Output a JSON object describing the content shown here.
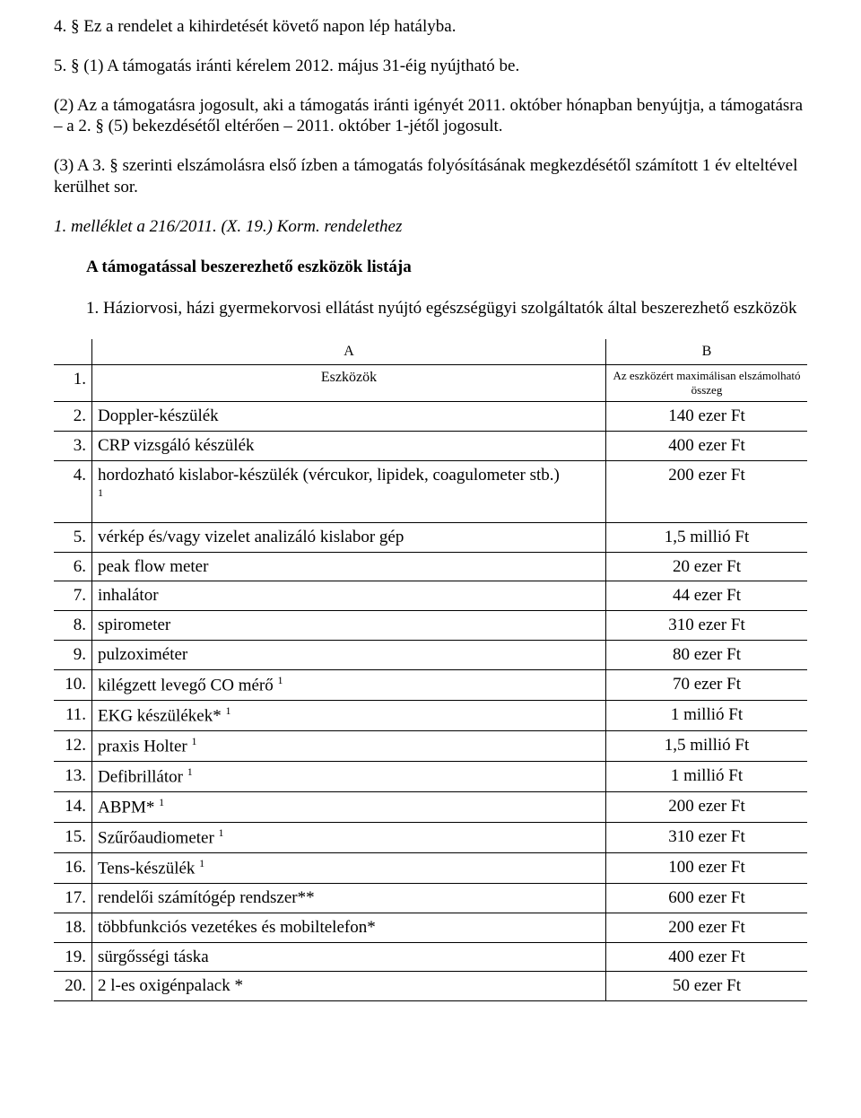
{
  "paragraphs": {
    "p1": "4. § Ez a rendelet a kihirdetését követő napon lép hatályba.",
    "p2": "5. § (1) A támogatás iránti kérelem 2012. május 31-éig nyújtható be.",
    "p3": "(2) Az a támogatásra jogosult, aki a támogatás iránti igényét 2011. október hónapban benyújtja, a támogatásra – a 2. § (5) bekezdésétől eltérően – 2011. október 1-jétől jogosult.",
    "p4": "(3) A 3. § szerinti elszámolásra első ízben a támogatás folyósításának megkezdésétől számított 1 év elteltével kerülhet sor."
  },
  "attachment_heading": "1. melléklet a 216/2011. (X. 19.) Korm. rendelethez",
  "subtitle": "A támogatással beszerezhető eszközök listája",
  "list_item_1": "1.   Háziorvosi, házi gyermekorvosi ellátást nyújtó egészségügyi szolgáltatók által beszerezhető eszközök",
  "table": {
    "colA_header": "A",
    "colB_header": "B",
    "row1_A": "Eszközök",
    "row1_B": "Az eszközért maximálisan elszámolható összeg",
    "rows": [
      {
        "n": "2.",
        "a": "Doppler-készülék",
        "b": "140 ezer Ft"
      },
      {
        "n": "3.",
        "a": "CRP vizsgáló készülék",
        "b": "400 ezer Ft"
      },
      {
        "n": "4.",
        "a": "hordozható kislabor-készülék (vércukor, lipidek, coagulometer stb.) ",
        "sup": "1",
        "b": "200 ezer Ft",
        "tall": true
      },
      {
        "n": "5.",
        "a": "vérkép és/vagy vizelet analizáló kislabor gép",
        "b": "1,5 millió Ft"
      },
      {
        "n": "6.",
        "a": "peak flow meter",
        "b": "20 ezer Ft"
      },
      {
        "n": "7.",
        "a": "inhalátor",
        "b": "44 ezer Ft"
      },
      {
        "n": "8.",
        "a": "spirometer",
        "b": "310 ezer Ft"
      },
      {
        "n": "9.",
        "a": "pulzoximéter",
        "b": "80 ezer Ft"
      },
      {
        "n": "10.",
        "a": "kilégzett levegő CO mérő ",
        "sup": "1",
        "b": "70 ezer Ft"
      },
      {
        "n": "11.",
        "a": "EKG készülékek* ",
        "sup": "1",
        "b": "1 millió Ft"
      },
      {
        "n": "12.",
        "a": "praxis Holter ",
        "sup": "1",
        "b": "1,5 millió Ft"
      },
      {
        "n": "13.",
        "a": "Defibrillátor ",
        "sup": "1",
        "b": "1 millió Ft"
      },
      {
        "n": "14.",
        "a": "ABPM* ",
        "sup": "1",
        "b": "200 ezer Ft"
      },
      {
        "n": "15.",
        "a": "Szűrőaudiometer ",
        "sup": "1",
        "b": "310 ezer Ft"
      },
      {
        "n": "16.",
        "a": "Tens-készülék ",
        "sup": "1",
        "b": "100 ezer Ft"
      },
      {
        "n": "17.",
        "a": "rendelői számítógép rendszer**",
        "b": "600 ezer Ft"
      },
      {
        "n": "18.",
        "a": "többfunkciós vezetékes és mobiltelefon*",
        "b": "200 ezer Ft"
      },
      {
        "n": "19.",
        "a": "sürgősségi táska",
        "b": "400 ezer Ft"
      },
      {
        "n": "20.",
        "a": "2 l-es oxigénpalack *",
        "b": "50 ezer Ft"
      }
    ]
  }
}
